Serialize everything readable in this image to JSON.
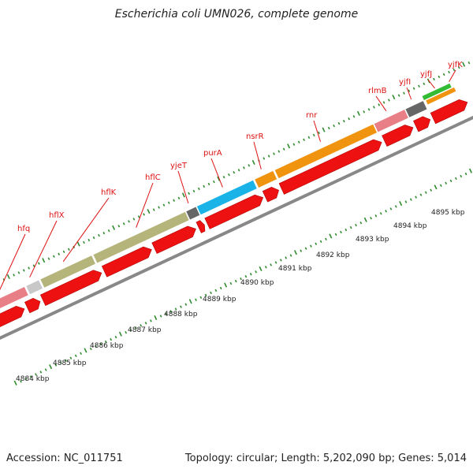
{
  "title": "Escherichia coli UMN026, complete genome",
  "footer": {
    "accession": "Accession: NC_011751",
    "summary": "Topology: circular; Length: 5,202,090 bp; Genes: 5,014"
  },
  "colors": {
    "cds_red": "#ee1111",
    "backbone": "#888888",
    "tick_green": "#2e8b2e",
    "label_red": "#dd1111"
  },
  "genes": [
    {
      "name": "hfq",
      "color": "#e97f86"
    },
    {
      "name": "hflX",
      "color": "#c8c8c8"
    },
    {
      "name": "hflK",
      "color": "#b5b47a"
    },
    {
      "name": "hflC",
      "color": "#b5b47a"
    },
    {
      "name": "yjeT",
      "color": "#666666"
    },
    {
      "name": "purA",
      "color": "#1ab3e8"
    },
    {
      "name": "nsrR",
      "color": "#f0930f"
    },
    {
      "name": "rnr",
      "color": "#f0930f"
    },
    {
      "name": "rlmB",
      "color": "#e97f86"
    },
    {
      "name": "yjfI",
      "color": "#666666"
    },
    {
      "name": "yjfJ",
      "color": "#33bb33"
    },
    {
      "name": "yjfK",
      "color": "#f0930f"
    }
  ],
  "kbp_labels": [
    "4884 kbp",
    "4885 kbp",
    "4886 kbp",
    "4887 kbp",
    "4888 kbp",
    "4889 kbp",
    "4890 kbp",
    "4891 kbp",
    "4892 kbp",
    "4893 kbp",
    "4894 kbp",
    "4895 kbp"
  ]
}
